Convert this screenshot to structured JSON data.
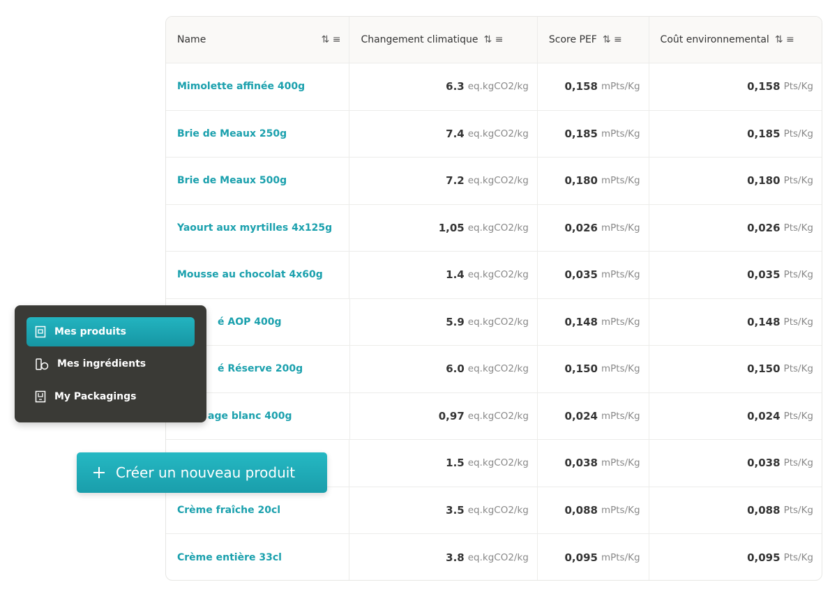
{
  "header": {
    "columns": [
      "Name",
      "Changement climatique",
      "Score PEF",
      "Coût environnemental"
    ]
  },
  "table": {
    "rows": [
      [
        "Mimolette affinée 400g",
        "6.3",
        "eq.kgCO2/kg",
        "0,158",
        "mPts/Kg",
        "0,158",
        "Pts/Kg"
      ],
      [
        "Brie de Meaux 250g",
        "7.4",
        "eq.kgCO2/kg",
        "0,185",
        "mPts/Kg",
        "0,185",
        "Pts/Kg"
      ],
      [
        "Brie de Meaux 500g",
        "7.2",
        "eq.kgCO2/kg",
        "0,180",
        "mPts/Kg",
        "0,180",
        "Pts/Kg"
      ],
      [
        "Yaourt aux myrtilles 4x125g",
        "1,05",
        "eq.kgCO2/kg",
        "0,026",
        "mPts/Kg",
        "0,026",
        "Pts/Kg"
      ],
      [
        "Mousse au chocolat 4x60g",
        "1.4",
        "eq.kgCO2/kg",
        "0,035",
        "mPts/Kg",
        "0,035",
        "Pts/Kg"
      ],
      [
        "é AOP 400g",
        "5.9",
        "eq.kgCO2/kg",
        "0,148",
        "mPts/Kg",
        "0,148",
        "Pts/Kg"
      ],
      [
        "é Réserve 200g",
        "6.0",
        "eq.kgCO2/kg",
        "0,150",
        "mPts/Kg",
        "0,150",
        "Pts/Kg"
      ],
      [
        "age blanc 400g",
        "0,97",
        "eq.kgCO2/kg",
        "0,024",
        "mPts/Kg",
        "0,024",
        "Pts/Kg"
      ],
      [
        null,
        "1.5",
        "eq.kgCO2/kg",
        "0,038",
        "mPts/Kg",
        "0,038",
        "Pts/Kg"
      ],
      [
        "Crème fraîche 20cl",
        "3.5",
        "eq.kgCO2/kg",
        "0,088",
        "mPts/Kg",
        "0,088",
        "Pts/Kg"
      ],
      [
        "Crème entière 33cl",
        "3.8",
        "eq.kgCO2/kg",
        "0,095",
        "mPts/Kg",
        "0,095",
        "Pts/Kg"
      ]
    ]
  },
  "menu": {
    "items": [
      "Mes produits",
      "Mes ingrédients",
      "My Packagings"
    ]
  },
  "button": {
    "label": "Créer un nouveau produit"
  }
}
